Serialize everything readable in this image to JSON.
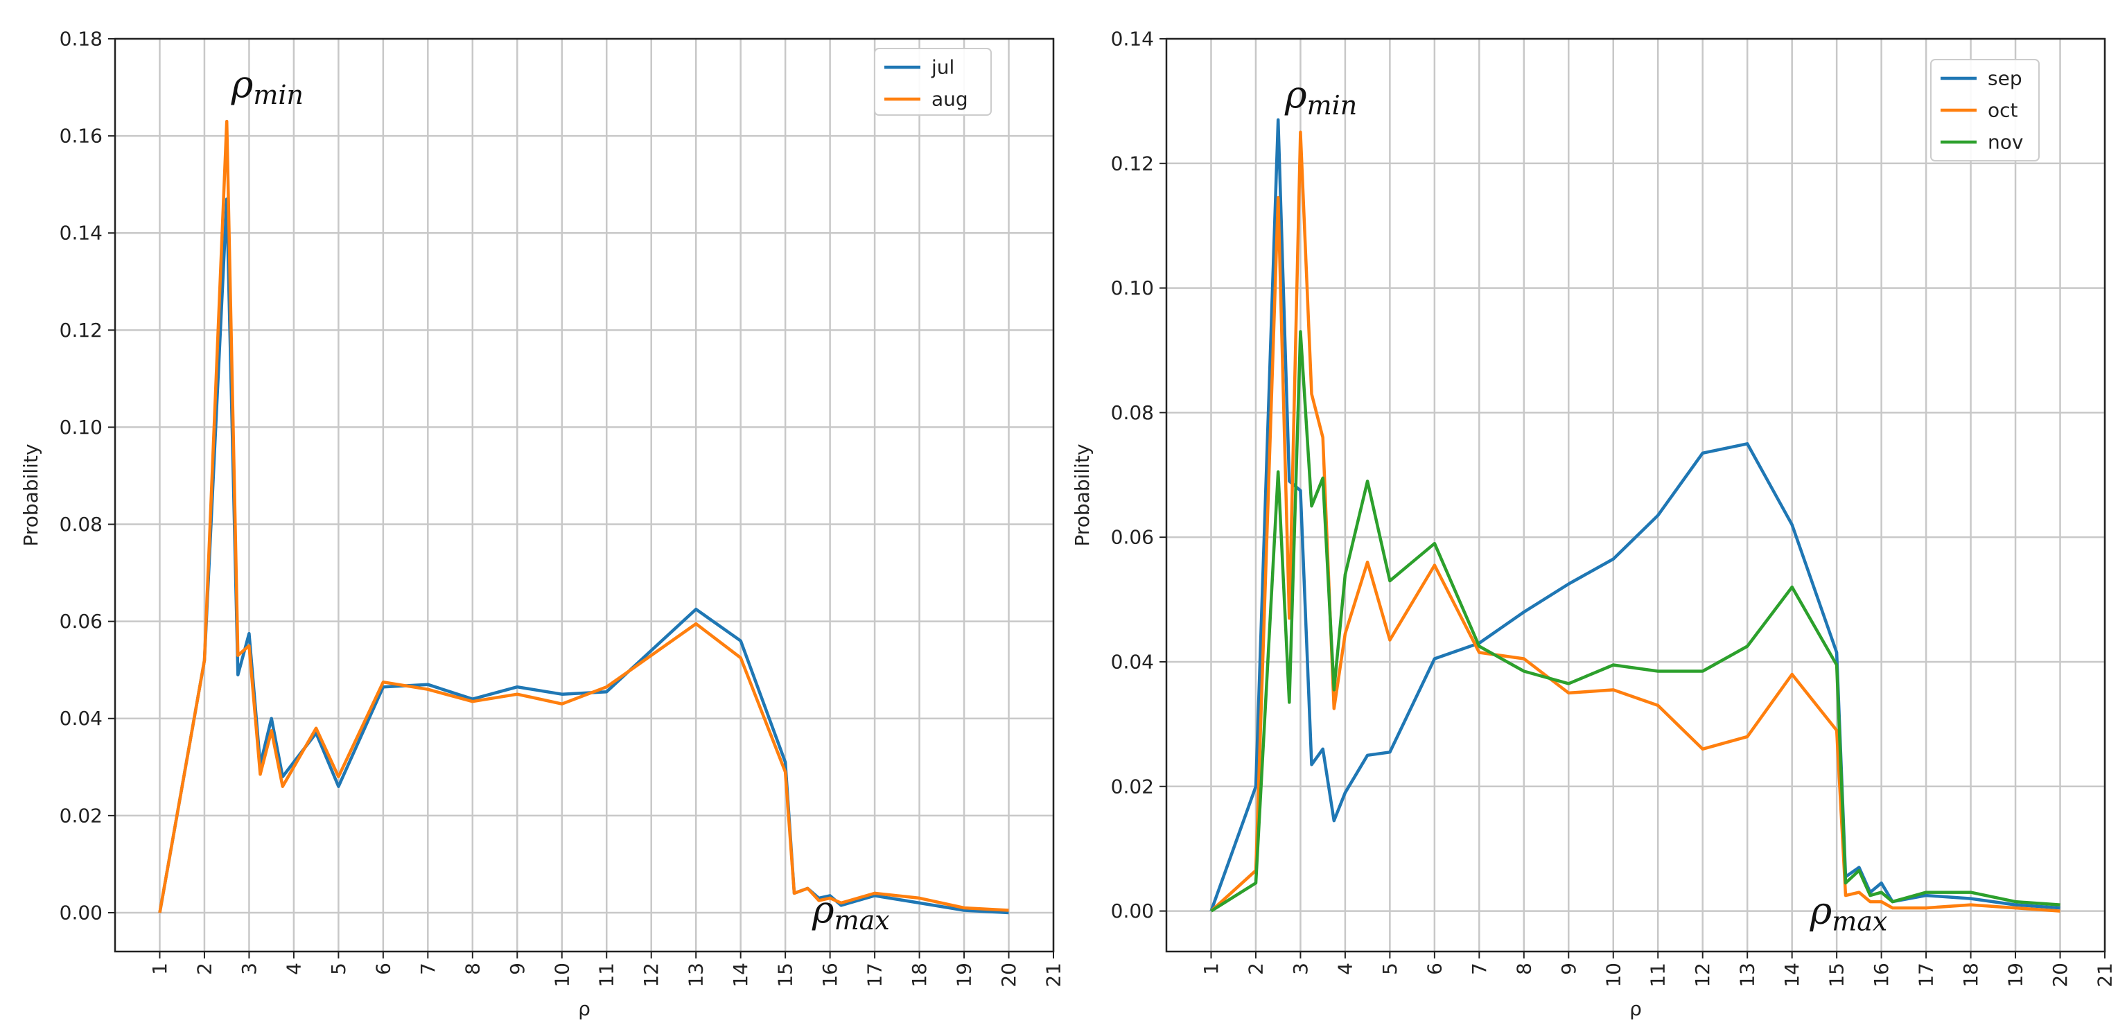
{
  "chart_data": [
    {
      "type": "line",
      "xlabel": "ρ",
      "ylabel": "Probability",
      "xlim": [
        0,
        21
      ],
      "ylim": [
        -0.008,
        0.18
      ],
      "xticks": [
        1,
        2,
        3,
        4,
        5,
        6,
        7,
        8,
        9,
        10,
        11,
        12,
        13,
        14,
        15,
        16,
        17,
        18,
        19,
        20,
        21
      ],
      "yticks": [
        0.0,
        0.02,
        0.04,
        0.06,
        0.08,
        0.1,
        0.12,
        0.14,
        0.16,
        0.18
      ],
      "ytick_labels": [
        "0.00",
        "0.02",
        "0.04",
        "0.06",
        "0.08",
        "0.10",
        "0.12",
        "0.14",
        "0.16",
        "0.18"
      ],
      "grid": true,
      "legend": "top-right",
      "annotations": [
        {
          "base": "ρ",
          "sub": "min",
          "x": 2.6,
          "y": 0.168
        },
        {
          "base": "ρ",
          "sub": "max",
          "x": 15.6,
          "y": -0.002
        }
      ],
      "series": [
        {
          "name": "jul",
          "color": "#1f77b4",
          "x": [
            1,
            2,
            2.5,
            2.75,
            3,
            3.25,
            3.5,
            3.75,
            4.5,
            5,
            6,
            7,
            8,
            9,
            10,
            11,
            13,
            14,
            15,
            15.2,
            15.5,
            15.75,
            16,
            16.25,
            17,
            18,
            19,
            20
          ],
          "y": [
            0.0,
            0.052,
            0.147,
            0.049,
            0.0575,
            0.0305,
            0.04,
            0.028,
            0.037,
            0.026,
            0.0465,
            0.047,
            0.044,
            0.0465,
            0.045,
            0.0455,
            0.0625,
            0.056,
            0.031,
            0.004,
            0.005,
            0.003,
            0.0035,
            0.0015,
            0.0035,
            0.002,
            0.0005,
            0.0
          ]
        },
        {
          "name": "aug",
          "color": "#ff7f0e",
          "x": [
            1,
            2,
            2.5,
            2.75,
            3,
            3.25,
            3.5,
            3.75,
            4.5,
            5,
            6,
            7,
            8,
            9,
            10,
            11,
            13,
            14,
            15,
            15.2,
            15.5,
            15.75,
            16,
            16.25,
            17,
            18,
            19,
            20
          ],
          "y": [
            0.0,
            0.052,
            0.163,
            0.053,
            0.055,
            0.0285,
            0.0375,
            0.026,
            0.038,
            0.028,
            0.0475,
            0.046,
            0.0435,
            0.045,
            0.043,
            0.0465,
            0.0595,
            0.0525,
            0.029,
            0.004,
            0.005,
            0.0025,
            0.003,
            0.002,
            0.004,
            0.003,
            0.001,
            0.0005
          ]
        }
      ]
    },
    {
      "type": "line",
      "xlabel": "ρ",
      "ylabel": "Probability",
      "xlim": [
        0,
        21
      ],
      "ylim": [
        -0.0065,
        0.14
      ],
      "xticks": [
        1,
        2,
        3,
        4,
        5,
        6,
        7,
        8,
        9,
        10,
        11,
        12,
        13,
        14,
        15,
        16,
        17,
        18,
        19,
        20,
        21
      ],
      "yticks": [
        0.0,
        0.02,
        0.04,
        0.06,
        0.08,
        0.1,
        0.12,
        0.14
      ],
      "ytick_labels": [
        "0.00",
        "0.02",
        "0.04",
        "0.06",
        "0.08",
        "0.10",
        "0.12",
        "0.14"
      ],
      "grid": true,
      "legend": "top-right",
      "annotations": [
        {
          "base": "ρ",
          "sub": "min",
          "x": 2.65,
          "y": 0.129
        },
        {
          "base": "ρ",
          "sub": "max",
          "x": 14.4,
          "y": -0.002
        }
      ],
      "series": [
        {
          "name": "sep",
          "color": "#1f77b4",
          "x": [
            1,
            2,
            2.5,
            2.75,
            3,
            3.25,
            3.5,
            3.75,
            4,
            4.5,
            5,
            6,
            7,
            8,
            9,
            10,
            11,
            12,
            13,
            14,
            15,
            15.2,
            15.5,
            15.75,
            16,
            16.25,
            17,
            18,
            19,
            20
          ],
          "y": [
            0.0,
            0.02,
            0.127,
            0.069,
            0.0675,
            0.0235,
            0.026,
            0.0145,
            0.019,
            0.025,
            0.0255,
            0.0405,
            0.043,
            0.048,
            0.0525,
            0.0565,
            0.0635,
            0.0735,
            0.075,
            0.062,
            0.0415,
            0.0055,
            0.007,
            0.003,
            0.0045,
            0.0015,
            0.0025,
            0.002,
            0.001,
            0.0005
          ]
        },
        {
          "name": "oct",
          "color": "#ff7f0e",
          "x": [
            1,
            2,
            2.5,
            2.75,
            3,
            3.25,
            3.5,
            3.75,
            4,
            4.5,
            5,
            6,
            7,
            8,
            9,
            10,
            11,
            12,
            13,
            14,
            15,
            15.2,
            15.5,
            15.75,
            16,
            16.25,
            17,
            18,
            19,
            20
          ],
          "y": [
            0.0,
            0.0065,
            0.1145,
            0.047,
            0.125,
            0.083,
            0.076,
            0.0325,
            0.0445,
            0.056,
            0.0435,
            0.0555,
            0.0415,
            0.0405,
            0.035,
            0.0355,
            0.033,
            0.026,
            0.028,
            0.038,
            0.029,
            0.0025,
            0.003,
            0.0015,
            0.0015,
            0.0005,
            0.0005,
            0.001,
            0.0005,
            0.0
          ]
        },
        {
          "name": "nov",
          "color": "#2ca02c",
          "x": [
            1,
            2,
            2.5,
            2.75,
            3,
            3.25,
            3.5,
            3.75,
            4,
            4.5,
            5,
            6,
            7,
            8,
            9,
            10,
            11,
            12,
            13,
            14,
            15,
            15.2,
            15.5,
            15.75,
            16,
            16.25,
            17,
            18,
            19,
            20
          ],
          "y": [
            0.0,
            0.0045,
            0.0705,
            0.0335,
            0.093,
            0.065,
            0.0695,
            0.0355,
            0.054,
            0.069,
            0.053,
            0.059,
            0.0425,
            0.0385,
            0.0365,
            0.0395,
            0.0385,
            0.0385,
            0.0425,
            0.052,
            0.0395,
            0.0045,
            0.0065,
            0.0025,
            0.003,
            0.0015,
            0.003,
            0.003,
            0.0015,
            0.001
          ]
        }
      ]
    }
  ]
}
